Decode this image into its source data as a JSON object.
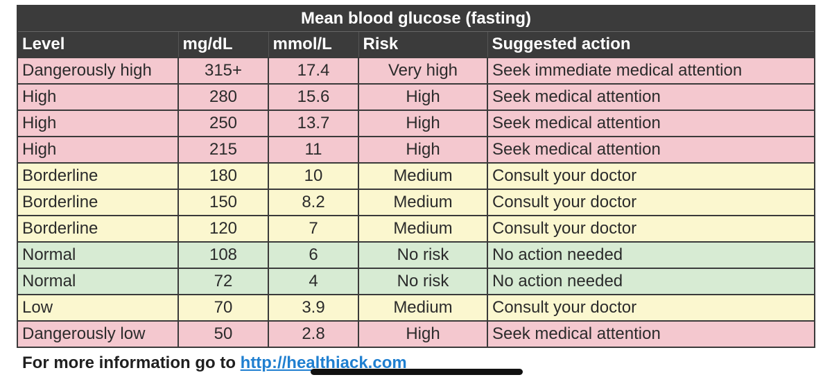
{
  "table": {
    "title": "Mean blood glucose (fasting)",
    "headers": [
      "Level",
      "mg/dL",
      "mmol/L",
      "Risk",
      "Suggested action"
    ],
    "rows": [
      {
        "level": "Dangerously high",
        "mgdl": "315+",
        "mmol": "17.4",
        "risk": "Very high",
        "action": "Seek immediate medical attention",
        "color": "#f4c8cf"
      },
      {
        "level": "High",
        "mgdl": "280",
        "mmol": "15.6",
        "risk": "High",
        "action": "Seek medical attention",
        "color": "#f4c8cf"
      },
      {
        "level": "High",
        "mgdl": "250",
        "mmol": "13.7",
        "risk": "High",
        "action": "Seek medical attention",
        "color": "#f4c8cf"
      },
      {
        "level": "High",
        "mgdl": "215",
        "mmol": "11",
        "risk": "High",
        "action": "Seek medical attention",
        "color": "#f4c8cf"
      },
      {
        "level": "Borderline",
        "mgdl": "180",
        "mmol": "10",
        "risk": "Medium",
        "action": "Consult your doctor",
        "color": "#fbf7cf"
      },
      {
        "level": "Borderline",
        "mgdl": "150",
        "mmol": "8.2",
        "risk": "Medium",
        "action": "Consult your doctor",
        "color": "#fbf7cf"
      },
      {
        "level": "Borderline",
        "mgdl": "120",
        "mmol": "7",
        "risk": "Medium",
        "action": "Consult your doctor",
        "color": "#fbf7cf"
      },
      {
        "level": "Normal",
        "mgdl": "108",
        "mmol": "6",
        "risk": "No risk",
        "action": "No action needed",
        "color": "#d7ebd3"
      },
      {
        "level": "Normal",
        "mgdl": "72",
        "mmol": "4",
        "risk": "No risk",
        "action": "No action needed",
        "color": "#d7ebd3"
      },
      {
        "level": "Low",
        "mgdl": "70",
        "mmol": "3.9",
        "risk": "Medium",
        "action": "Consult your doctor",
        "color": "#fbf7cf"
      },
      {
        "level": "Dangerously low",
        "mgdl": "50",
        "mmol": "2.8",
        "risk": "High",
        "action": "Seek medical attention",
        "color": "#f4c8cf"
      }
    ]
  },
  "footer": {
    "text": "For more information go to ",
    "link": "http://healthiack.com"
  },
  "colors": {
    "header_bg": "#3b3b3b",
    "high_risk": "#f4c8cf",
    "medium_risk": "#fbf7cf",
    "no_risk": "#d7ebd3",
    "link": "#1f7fd0"
  }
}
